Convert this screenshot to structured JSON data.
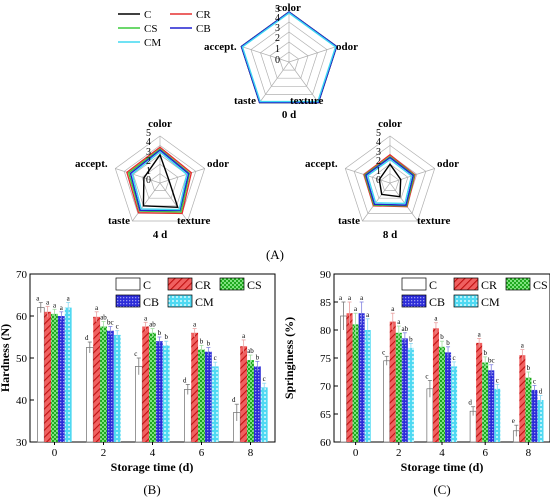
{
  "figure": {
    "panel_A_label": "(A)",
    "panel_B_label": "(B)",
    "panel_C_label": "(C)"
  },
  "colors": {
    "C": "#000000",
    "CR": "#e53030",
    "CS": "#3ccc3c",
    "CB": "#2020d0",
    "CM": "#40d8f0",
    "grid": "#b0b0b0"
  },
  "chart_data": [
    {
      "type": "radar",
      "title": "0 d",
      "axes": [
        "color",
        "odor",
        "texture",
        "taste",
        "accept."
      ],
      "ticks": [
        "0",
        "1",
        "2",
        "3",
        "4",
        "5"
      ],
      "rmax": 5,
      "legend": [
        "C",
        "CR",
        "CS",
        "CB",
        "CM"
      ],
      "series": [
        {
          "name": "C",
          "values": [
            5,
            5,
            5,
            5,
            5
          ]
        },
        {
          "name": "CR",
          "values": [
            5,
            5,
            5,
            5,
            5
          ]
        },
        {
          "name": "CS",
          "values": [
            5,
            5,
            5,
            5,
            5
          ]
        },
        {
          "name": "CB",
          "values": [
            5,
            5,
            5,
            5,
            5
          ]
        },
        {
          "name": "CM",
          "values": [
            4.9,
            4.9,
            4.9,
            4.9,
            4.9
          ]
        }
      ]
    },
    {
      "type": "radar",
      "title": "4 d",
      "axes": [
        "color",
        "odor",
        "texture",
        "taste",
        "accept."
      ],
      "ticks": [
        "0",
        "1",
        "2",
        "3",
        "4",
        "5"
      ],
      "rmax": 5,
      "series": [
        {
          "name": "C",
          "values": [
            3.0,
            1.0,
            3.2,
            3.0,
            1.8
          ]
        },
        {
          "name": "CR",
          "values": [
            3.8,
            3.5,
            4.0,
            3.9,
            3.7
          ]
        },
        {
          "name": "CS",
          "values": [
            3.6,
            3.3,
            3.8,
            3.7,
            3.5
          ]
        },
        {
          "name": "CB",
          "values": [
            3.5,
            3.2,
            3.6,
            3.6,
            3.3
          ]
        },
        {
          "name": "CM",
          "values": [
            3.3,
            3.0,
            3.5,
            3.4,
            3.1
          ]
        }
      ]
    },
    {
      "type": "radar",
      "title": "8 d",
      "axes": [
        "color",
        "odor",
        "texture",
        "taste",
        "accept."
      ],
      "ticks": [
        "0",
        "1",
        "2",
        "3",
        "4",
        "5"
      ],
      "rmax": 5,
      "series": [
        {
          "name": "C",
          "values": [
            2.0,
            1.2,
            1.8,
            1.5,
            1.2
          ]
        },
        {
          "name": "CR",
          "values": [
            3.0,
            2.8,
            3.1,
            3.0,
            2.9
          ]
        },
        {
          "name": "CS",
          "values": [
            2.8,
            2.7,
            3.0,
            2.9,
            2.8
          ]
        },
        {
          "name": "CB",
          "values": [
            2.7,
            2.6,
            2.9,
            2.8,
            2.7
          ]
        },
        {
          "name": "CM",
          "values": [
            2.5,
            2.4,
            2.7,
            2.6,
            2.5
          ]
        }
      ]
    },
    {
      "type": "bar",
      "xlabel": "Storage time (d)",
      "ylabel": "Hardness (N)",
      "categories": [
        "0",
        "2",
        "4",
        "6",
        "8"
      ],
      "ylim": [
        30,
        70
      ],
      "yticks": [
        30,
        40,
        50,
        60,
        70
      ],
      "legend": [
        "C",
        "CR",
        "CS",
        "CB",
        "CM"
      ],
      "series": [
        {
          "name": "C",
          "values": [
            62,
            52.5,
            48,
            42.5,
            37
          ],
          "errors": [
            1.2,
            1.3,
            2.0,
            1.2,
            2.0
          ],
          "letters": [
            "a",
            "d",
            "c",
            "d",
            "d"
          ]
        },
        {
          "name": "CR",
          "values": [
            61,
            59.8,
            57.5,
            56,
            52.8
          ],
          "errors": [
            1.3,
            1.2,
            1.0,
            1.0,
            1.5
          ],
          "letters": [
            "a",
            "a",
            "a",
            "a",
            "a"
          ]
        },
        {
          "name": "CS",
          "values": [
            60.5,
            57.5,
            56,
            52,
            49.5
          ],
          "errors": [
            1.1,
            1.2,
            1.0,
            1.0,
            1.2
          ],
          "letters": [
            "a",
            "ab",
            "ab",
            "b",
            "ab"
          ]
        },
        {
          "name": "CB",
          "values": [
            60,
            56.5,
            54,
            51.5,
            48
          ],
          "errors": [
            1.0,
            1.0,
            1.0,
            1.0,
            1.2
          ],
          "letters": [
            "a",
            "bc",
            "b",
            "b",
            "b"
          ]
        },
        {
          "name": "CM",
          "values": [
            62,
            55.5,
            53,
            48,
            43
          ],
          "errors": [
            1.2,
            1.0,
            1.0,
            1.0,
            1.0
          ],
          "letters": [
            "a",
            "c",
            "b",
            "c",
            "c"
          ]
        }
      ]
    },
    {
      "type": "bar",
      "xlabel": "Storage time (d)",
      "ylabel": "Springiness (%)",
      "categories": [
        "0",
        "2",
        "4",
        "6",
        "8"
      ],
      "ylim": [
        60,
        90
      ],
      "yticks": [
        60,
        65,
        70,
        75,
        80,
        85,
        90
      ],
      "legend": [
        "C",
        "CR",
        "CS",
        "CB",
        "CM"
      ],
      "series": [
        {
          "name": "C",
          "values": [
            82.5,
            74.5,
            69.5,
            65.5,
            62
          ],
          "errors": [
            2.5,
            0.8,
            1.5,
            0.8,
            1.0
          ],
          "letters": [
            "a",
            "c",
            "c",
            "d",
            "e"
          ]
        },
        {
          "name": "CR",
          "values": [
            83,
            81.5,
            80.3,
            77.7,
            75.5
          ],
          "errors": [
            2.0,
            1.5,
            1.0,
            0.8,
            1.0
          ],
          "letters": [
            "a",
            "a",
            "a",
            "a",
            "a"
          ]
        },
        {
          "name": "CS",
          "values": [
            81,
            79.5,
            77,
            74.2,
            71.5
          ],
          "errors": [
            2.0,
            1.2,
            1.0,
            1.0,
            1.0
          ],
          "letters": [
            "a",
            "a",
            "b",
            "b",
            "b"
          ]
        },
        {
          "name": "CB",
          "values": [
            83,
            78.5,
            76,
            72.8,
            69.3
          ],
          "errors": [
            2.0,
            1.0,
            1.0,
            1.0,
            0.8
          ],
          "letters": [
            "a",
            "ab",
            "b",
            "bc",
            "c"
          ]
        },
        {
          "name": "CM",
          "values": [
            80,
            76.8,
            73.5,
            69.5,
            67.5
          ],
          "errors": [
            2.0,
            0.8,
            0.8,
            0.8,
            0.8
          ],
          "letters": [
            "a",
            "b",
            "c",
            "c",
            "d"
          ]
        }
      ]
    }
  ]
}
